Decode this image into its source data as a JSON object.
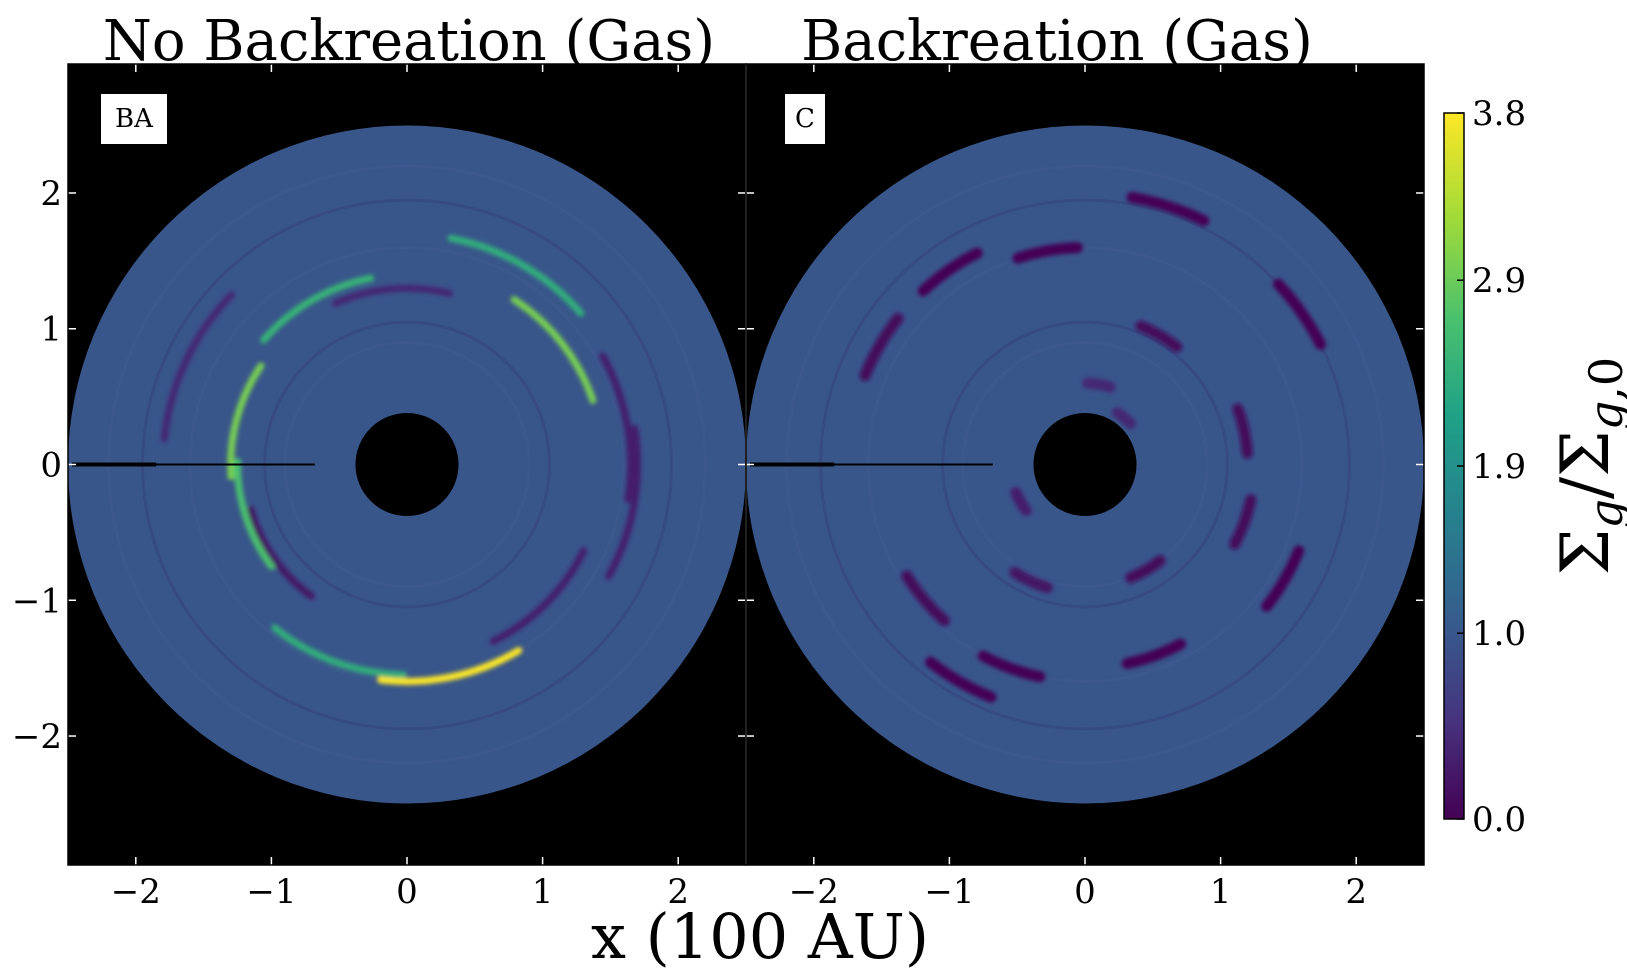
{
  "chart_data": [
    {
      "type": "heatmap",
      "title": "No Backreation (Gas)",
      "panel_label": "BA",
      "xlabel": "x (100 AU)",
      "ylabel": "",
      "xlim": [
        -2.5,
        2.5
      ],
      "ylim": [
        -2.95,
        2.95
      ],
      "xticks": [
        -2,
        -1,
        0,
        1,
        2
      ],
      "yticks": [
        -2,
        -1,
        0,
        1,
        2
      ],
      "disk": {
        "inner_radius": 0.38,
        "outer_radius": 2.5,
        "background_value": 1.0
      },
      "features": [
        {
          "r": 1.6,
          "theta": -78,
          "value": 3.8
        },
        {
          "r": 1.3,
          "theta": 165,
          "value": 3.0
        },
        {
          "r": 1.45,
          "theta": 38,
          "value": 3.0
        },
        {
          "r": 1.25,
          "theta": 198,
          "value": 2.7
        },
        {
          "r": 1.4,
          "theta": 120,
          "value": 2.5
        },
        {
          "r": 1.7,
          "theta": 60,
          "value": 2.4
        },
        {
          "r": 1.55,
          "theta": -110,
          "value": 2.4
        },
        {
          "r": 1.2,
          "theta": 215,
          "value": 0.2
        },
        {
          "r": 1.45,
          "theta": -45,
          "value": 0.3
        },
        {
          "r": 1.65,
          "theta": 10,
          "value": 0.3
        },
        {
          "r": 1.3,
          "theta": 95,
          "value": 0.4
        },
        {
          "r": 1.7,
          "theta": -10,
          "value": 0.3
        },
        {
          "r": 1.8,
          "theta": 155,
          "value": 0.4
        }
      ]
    },
    {
      "type": "heatmap",
      "title": "Backreation (Gas)",
      "panel_label": "C",
      "xlabel": "x (100 AU)",
      "ylabel": "",
      "xlim": [
        -2.5,
        2.5
      ],
      "ylim": [
        -2.95,
        2.95
      ],
      "xticks": [
        -2,
        -1,
        0,
        1,
        2
      ],
      "yticks": [
        -2,
        -1,
        0,
        1,
        2
      ],
      "disk": {
        "inner_radius": 0.38,
        "outer_radius": 2.5,
        "background_value": 1.0
      },
      "features": [
        {
          "r": 2.0,
          "theta": 72,
          "value": 0.0
        },
        {
          "r": 1.95,
          "theta": 35,
          "value": 0.0
        },
        {
          "r": 1.6,
          "theta": 100,
          "value": 0.0
        },
        {
          "r": 1.75,
          "theta": 125,
          "value": 0.0
        },
        {
          "r": 1.75,
          "theta": 150,
          "value": 0.1
        },
        {
          "r": 1.1,
          "theta": 60,
          "value": 0.1
        },
        {
          "r": 1.2,
          "theta": 12,
          "value": 0.1
        },
        {
          "r": 1.25,
          "theta": -20,
          "value": 0.1
        },
        {
          "r": 1.7,
          "theta": -30,
          "value": 0.0
        },
        {
          "r": 1.6,
          "theta": -110,
          "value": 0.0
        },
        {
          "r": 1.85,
          "theta": -120,
          "value": 0.0
        },
        {
          "r": 1.5,
          "theta": -70,
          "value": 0.0
        },
        {
          "r": 1.55,
          "theta": -140,
          "value": 0.1
        },
        {
          "r": 0.9,
          "theta": -60,
          "value": 0.1
        },
        {
          "r": 0.95,
          "theta": -115,
          "value": 0.2
        },
        {
          "r": 0.55,
          "theta": -150,
          "value": 0.3
        },
        {
          "r": 0.6,
          "theta": 80,
          "value": 0.4
        },
        {
          "r": 0.45,
          "theta": 50,
          "value": 0.4
        }
      ]
    }
  ],
  "colorbar": {
    "label": "Σg/Σg,0",
    "ticks": [
      0.0,
      1.0,
      1.9,
      2.9,
      3.8
    ],
    "tick_labels": [
      "0.0",
      "1.0",
      "1.9",
      "2.9",
      "3.8"
    ],
    "range": [
      0.0,
      3.8
    ],
    "colormap": [
      "#440154",
      "#46337e",
      "#365c8d",
      "#277f8e",
      "#1fa187",
      "#4ac16d",
      "#a0da39",
      "#fde725"
    ]
  },
  "colors": {
    "panel_bg": "#000000",
    "disk_base": "#3b528b",
    "frame": "#000000",
    "divider": "#ffffff"
  }
}
